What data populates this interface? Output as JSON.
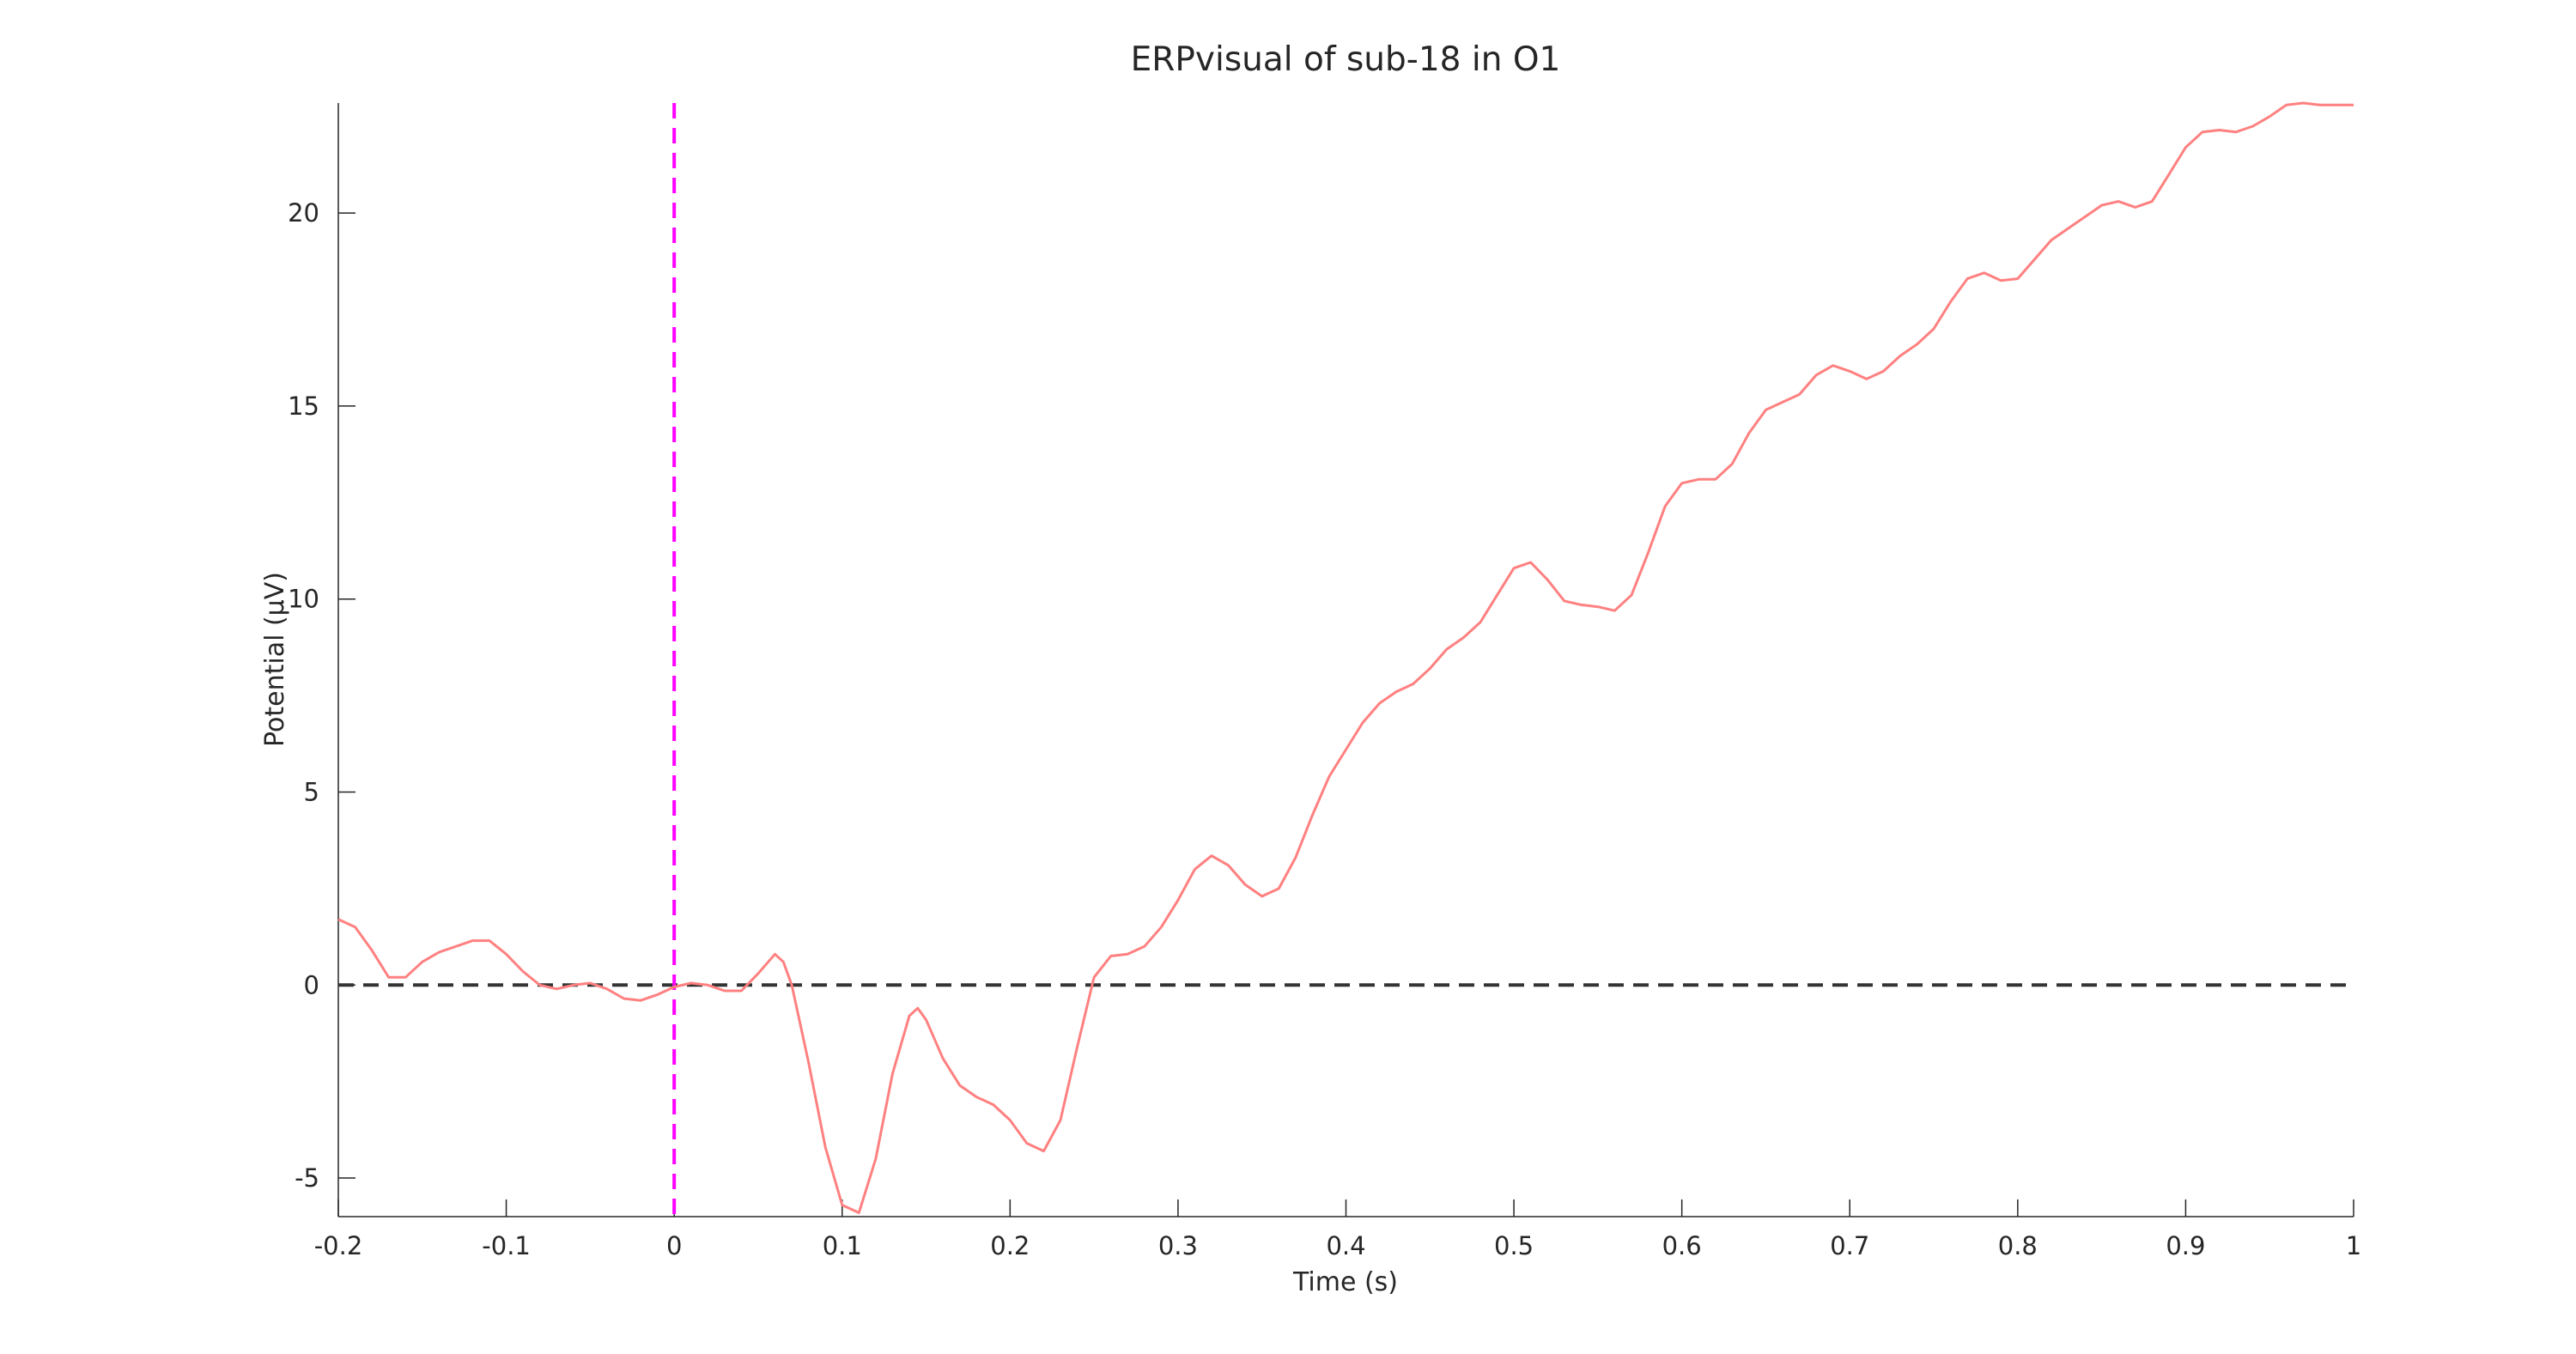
{
  "chart_data": {
    "type": "line",
    "title": "ERPvisual of sub-18 in O1",
    "x_label": "Time (s)",
    "y_label": "Potential (μV)",
    "x": [
      -0.2,
      -0.19,
      -0.18,
      -0.17,
      -0.16,
      -0.15,
      -0.14,
      -0.13,
      -0.12,
      -0.11,
      -0.1,
      -0.09,
      -0.08,
      -0.07,
      -0.06,
      -0.05,
      -0.04,
      -0.03,
      -0.02,
      -0.01,
      0,
      0.01,
      0.02,
      0.03,
      0.04,
      0.05,
      0.06,
      0.065,
      0.07,
      0.08,
      0.09,
      0.1,
      0.11,
      0.12,
      0.13,
      0.14,
      0.145,
      0.15,
      0.16,
      0.17,
      0.18,
      0.19,
      0.2,
      0.21,
      0.22,
      0.23,
      0.24,
      0.25,
      0.26,
      0.27,
      0.28,
      0.29,
      0.3,
      0.31,
      0.32,
      0.33,
      0.34,
      0.35,
      0.36,
      0.37,
      0.38,
      0.39,
      0.4,
      0.41,
      0.42,
      0.43,
      0.44,
      0.45,
      0.46,
      0.47,
      0.48,
      0.49,
      0.5,
      0.51,
      0.52,
      0.53,
      0.54,
      0.55,
      0.56,
      0.57,
      0.58,
      0.59,
      0.6,
      0.61,
      0.62,
      0.63,
      0.64,
      0.65,
      0.66,
      0.67,
      0.68,
      0.69,
      0.7,
      0.71,
      0.72,
      0.73,
      0.74,
      0.75,
      0.76,
      0.77,
      0.78,
      0.79,
      0.8,
      0.81,
      0.82,
      0.83,
      0.84,
      0.85,
      0.86,
      0.87,
      0.88,
      0.89,
      0.9,
      0.91,
      0.92,
      0.93,
      0.94,
      0.95,
      0.96,
      0.97,
      0.98,
      0.99,
      1
    ],
    "values": [
      1.7,
      1.5,
      0.9,
      0.2,
      0.2,
      0.6,
      0.85,
      1.0,
      1.15,
      1.15,
      0.8,
      0.35,
      0.0,
      -0.1,
      0.0,
      0.05,
      -0.1,
      -0.35,
      -0.4,
      -0.25,
      -0.05,
      0.05,
      0.0,
      -0.15,
      -0.15,
      0.3,
      0.8,
      0.6,
      0.0,
      -2.0,
      -4.2,
      -5.7,
      -5.9,
      -4.5,
      -2.3,
      -0.8,
      -0.6,
      -0.9,
      -1.9,
      -2.6,
      -2.9,
      -3.1,
      -3.5,
      -4.1,
      -4.3,
      -3.5,
      -1.6,
      0.2,
      0.75,
      0.8,
      1.0,
      1.5,
      2.2,
      3.0,
      3.35,
      3.1,
      2.6,
      2.3,
      2.5,
      3.3,
      4.4,
      5.4,
      6.1,
      6.8,
      7.3,
      7.6,
      7.8,
      8.2,
      8.7,
      9.0,
      9.4,
      10.1,
      10.8,
      10.95,
      10.5,
      9.95,
      9.85,
      9.8,
      9.7,
      10.1,
      11.2,
      12.4,
      13.0,
      13.1,
      13.1,
      13.5,
      14.3,
      14.9,
      15.1,
      15.3,
      15.8,
      16.05,
      15.9,
      15.7,
      15.9,
      16.3,
      16.6,
      17.0,
      17.7,
      18.3,
      18.45,
      18.25,
      18.3,
      18.8,
      19.3,
      19.6,
      19.9,
      20.2,
      20.3,
      20.15,
      20.3,
      21.0,
      21.7,
      22.1,
      22.15,
      22.1,
      22.25,
      22.5,
      22.8,
      22.85,
      22.8,
      22.8,
      22.8
    ],
    "color": "#ff8080",
    "xlim": [
      -0.2,
      1
    ],
    "ylim": [
      -6,
      22.85
    ],
    "xticks": [
      -0.2,
      -0.1,
      0,
      0.1,
      0.2,
      0.3,
      0.4,
      0.5,
      0.6,
      0.7,
      0.8,
      0.9,
      1
    ],
    "yticks": [
      -5,
      0,
      5,
      10,
      15,
      20
    ],
    "hline": {
      "value": 0,
      "color": "#333333"
    },
    "vline": {
      "value": 0,
      "color": "#ff00ff"
    }
  }
}
